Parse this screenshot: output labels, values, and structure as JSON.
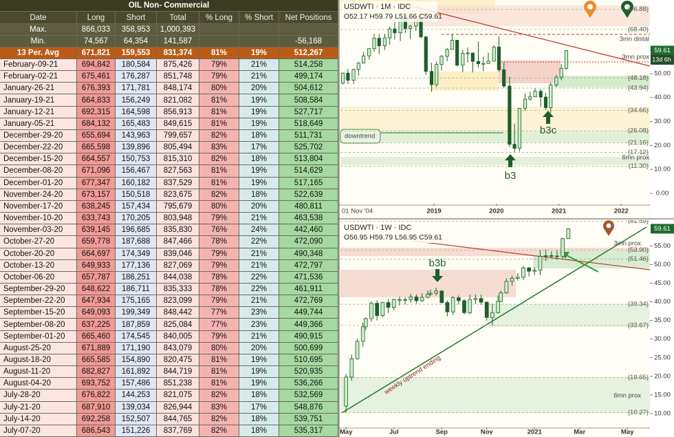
{
  "table": {
    "title": "OIL Non- Commercial",
    "columns": [
      "Date",
      "Long",
      "Short",
      "Total",
      "% Long",
      "% Short",
      "Net Positions"
    ],
    "summary": [
      {
        "label": "Max.",
        "long": "866,033",
        "short": "358,953",
        "total": "1,000,393"
      },
      {
        "label": "Min.",
        "long": "74,567",
        "short": "64,354",
        "total": "141,587",
        "net": "-56,168"
      },
      {
        "label": "13 Per. Avg",
        "long": "671,821",
        "short": "159,553",
        "total": "831,374",
        "pct_long": "81%",
        "pct_short": "19%",
        "net": "512,267"
      }
    ],
    "rows": [
      [
        "February-09-21",
        "694,842",
        "180,584",
        "875,426",
        "79%",
        "21%",
        "514,258"
      ],
      [
        "February-02-21",
        "675,461",
        "176,287",
        "851,748",
        "79%",
        "21%",
        "499,174"
      ],
      [
        "January-26-21",
        "676,393",
        "171,781",
        "848,174",
        "80%",
        "20%",
        "504,612"
      ],
      [
        "January-19-21",
        "664,833",
        "156,249",
        "821,082",
        "81%",
        "19%",
        "508,584"
      ],
      [
        "January-12-21",
        "692,315",
        "164,598",
        "856,913",
        "81%",
        "19%",
        "527,717"
      ],
      [
        "January-05-21",
        "684,132",
        "165,483",
        "849,615",
        "81%",
        "19%",
        "518,649"
      ],
      [
        "December-29-20",
        "655,694",
        "143,963",
        "799,657",
        "82%",
        "18%",
        "511,731"
      ],
      [
        "December-22-20",
        "665,598",
        "139,896",
        "805,494",
        "83%",
        "17%",
        "525,702"
      ],
      [
        "December-15-20",
        "664,557",
        "150,753",
        "815,310",
        "82%",
        "18%",
        "513,804"
      ],
      [
        "December-08-20",
        "671,096",
        "156,467",
        "827,563",
        "81%",
        "19%",
        "514,629"
      ],
      [
        "December-01-20",
        "677,347",
        "160,182",
        "837,529",
        "81%",
        "19%",
        "517,165"
      ],
      [
        "November-24-20",
        "673,157",
        "150,518",
        "823,675",
        "82%",
        "18%",
        "522,639"
      ],
      [
        "November-17-20",
        "638,245",
        "157,434",
        "795,679",
        "80%",
        "20%",
        "480,811"
      ],
      [
        "November-10-20",
        "633,743",
        "170,205",
        "803,948",
        "79%",
        "21%",
        "463,538"
      ],
      [
        "November-03-20",
        "639,145",
        "196,685",
        "835,830",
        "76%",
        "24%",
        "442,460"
      ],
      [
        "October-27-20",
        "659,778",
        "187,688",
        "847,466",
        "78%",
        "22%",
        "472,090"
      ],
      [
        "October-20-20",
        "664,697",
        "174,349",
        "839,046",
        "79%",
        "21%",
        "490,348"
      ],
      [
        "October-13-20",
        "649,933",
        "177,136",
        "827,069",
        "79%",
        "21%",
        "472,797"
      ],
      [
        "October-06-20",
        "657,787",
        "186,251",
        "844,038",
        "78%",
        "22%",
        "471,536"
      ],
      [
        "September-29-20",
        "648,622",
        "186,711",
        "835,333",
        "78%",
        "22%",
        "461,911"
      ],
      [
        "September-22-20",
        "647,934",
        "175,165",
        "823,099",
        "79%",
        "21%",
        "472,769"
      ],
      [
        "September-15-20",
        "649,093",
        "199,349",
        "848,442",
        "77%",
        "23%",
        "449,744"
      ],
      [
        "September-08-20",
        "637,225",
        "187,859",
        "825,084",
        "77%",
        "23%",
        "449,366"
      ],
      [
        "September-01-20",
        "665,460",
        "174,545",
        "840,005",
        "79%",
        "21%",
        "490,915"
      ],
      [
        "August-25-20",
        "671,889",
        "171,190",
        "843,079",
        "80%",
        "20%",
        "500,699"
      ],
      [
        "August-18-20",
        "665,585",
        "154,890",
        "820,475",
        "81%",
        "19%",
        "510,695"
      ],
      [
        "August-11-20",
        "682,827",
        "161,892",
        "844,719",
        "81%",
        "19%",
        "520,935"
      ],
      [
        "August-04-20",
        "693,752",
        "157,486",
        "851,238",
        "81%",
        "19%",
        "536,266"
      ],
      [
        "July-28-20",
        "676,822",
        "144,253",
        "821,075",
        "82%",
        "18%",
        "532,569"
      ],
      [
        "July-21-20",
        "687,910",
        "139,034",
        "826,944",
        "83%",
        "17%",
        "548,876"
      ],
      [
        "July-14-20",
        "692,258",
        "152,507",
        "844,765",
        "82%",
        "18%",
        "539,751"
      ],
      [
        "July-07-20",
        "686,543",
        "151,226",
        "837,769",
        "82%",
        "18%",
        "535,317"
      ]
    ]
  },
  "chart_data": [
    {
      "type": "candlestick",
      "title": "USDWTI · 1M · IDC",
      "ohlc_label": "O52.17 H59.79 L51.66 C59.61",
      "x": [
        2017.54,
        2017.62,
        2017.71,
        2017.79,
        2017.87,
        2017.96,
        2018.04,
        2018.12,
        2018.21,
        2018.29,
        2018.37,
        2018.46,
        2018.54,
        2018.62,
        2018.71,
        2018.79,
        2018.87,
        2018.96,
        2019.04,
        2019.12,
        2019.21,
        2019.29,
        2019.37,
        2019.46,
        2019.54,
        2019.62,
        2019.71,
        2019.79,
        2019.87,
        2019.96,
        2020.04,
        2020.12,
        2020.21,
        2020.29,
        2020.37,
        2020.46,
        2020.54,
        2020.62,
        2020.71,
        2020.79,
        2020.87,
        2020.96,
        2021.04,
        2021.12
      ],
      "open": [
        46.0,
        50.2,
        47.2,
        51.7,
        54.4,
        57.4,
        60.4,
        64.7,
        61.6,
        64.9,
        68.6,
        67.0,
        74.1,
        68.8,
        69.8,
        73.2,
        65.3,
        50.9,
        45.4,
        53.8,
        57.2,
        60.1,
        63.9,
        53.5,
        58.5,
        58.6,
        55.1,
        54.1,
        54.2,
        55.2,
        61.1,
        51.6,
        44.8,
        20.5,
        18.8,
        35.5,
        39.3,
        40.3,
        42.6,
        40.2,
        35.8,
        45.3,
        48.5,
        52.17
      ],
      "high": [
        50.4,
        52.0,
        52.0,
        54.8,
        59.0,
        60.5,
        66.6,
        66.7,
        66.6,
        69.6,
        72.9,
        74.4,
        75.3,
        70.4,
        73.8,
        76.9,
        65.7,
        54.5,
        55.0,
        57.8,
        60.7,
        66.6,
        64.1,
        59.9,
        60.9,
        58.7,
        63.4,
        57.0,
        58.7,
        61.8,
        65.6,
        54.6,
        48.7,
        29.1,
        35.6,
        41.6,
        42.5,
        43.8,
        43.5,
        41.9,
        46.3,
        49.4,
        53.9,
        59.79
      ],
      "low": [
        45.4,
        45.6,
        45.6,
        49.1,
        54.2,
        55.8,
        59.1,
        58.1,
        59.9,
        62.0,
        64.2,
        63.6,
        67.0,
        64.4,
        67.8,
        64.8,
        49.4,
        42.4,
        44.4,
        51.2,
        55.2,
        60.0,
        53.0,
        50.6,
        54.7,
        50.5,
        52.6,
        50.9,
        54.1,
        55.1,
        50.6,
        44.0,
        19.3,
        17.1,
        17.5,
        34.4,
        38.7,
        40.2,
        36.1,
        34.9,
        33.6,
        44.4,
        47.2,
        51.66
      ],
      "close": [
        50.2,
        47.2,
        51.7,
        54.4,
        57.4,
        60.4,
        64.7,
        61.6,
        64.9,
        68.6,
        67.0,
        74.1,
        68.8,
        69.8,
        73.2,
        65.3,
        50.9,
        45.4,
        53.8,
        57.2,
        60.1,
        63.9,
        53.5,
        58.5,
        58.6,
        55.1,
        54.1,
        54.2,
        55.2,
        61.1,
        51.6,
        44.8,
        20.5,
        18.8,
        35.5,
        39.3,
        40.3,
        42.6,
        40.2,
        35.8,
        45.3,
        48.5,
        52.17,
        59.61
      ],
      "xlim": [
        2017.5,
        2022.46
      ],
      "ylim": [
        -4.3,
        80.7
      ],
      "xticks": [
        2019,
        2020,
        2021,
        2022
      ],
      "yticks": [
        {
          "value": 0,
          "label": "0.00"
        },
        {
          "value": 10,
          "label": "10.00"
        },
        {
          "value": 20,
          "label": "20.00"
        },
        {
          "value": 30,
          "label": "30.00"
        },
        {
          "value": 40,
          "label": "40.00"
        },
        {
          "value": 50,
          "label": "50.00"
        },
        {
          "value": 60,
          "label": "60.00"
        }
      ],
      "levels": [
        {
          "value": 76.88,
          "label": "(76.88)"
        },
        {
          "value": 68.4,
          "label": "(68.40)"
        },
        {
          "value": 48.18,
          "label": "(48.18)"
        },
        {
          "value": 43.94,
          "label": "(43.94)"
        },
        {
          "value": 34.66,
          "label": "(34.66)"
        },
        {
          "value": 26.08,
          "label": "(26.08)"
        },
        {
          "value": 21.16,
          "label": "(21.16)"
        },
        {
          "value": 17.12,
          "label": "(17.12)"
        },
        {
          "value": 11.3,
          "label": "(11.30)"
        }
      ],
      "annotations": [
        "3mn distal",
        "3mn prox",
        "6mn prox",
        "downtrend",
        "b3",
        "b3c",
        "01 Nov '04",
        "13d 6h"
      ],
      "up_color": "#c9ecc7",
      "down_color": "#1d5e2a",
      "edge_color": "#1d5e2a"
    },
    {
      "type": "candlestick",
      "title": "USDWTI · 1W · IDC",
      "ohlc_label": "O56.95 H59.79 L56.95 C59.61",
      "x": [
        2020.33,
        2020.35,
        2020.37,
        2020.39,
        2020.4,
        2020.42,
        2020.44,
        2020.46,
        2020.48,
        2020.5,
        2020.52,
        2020.54,
        2020.56,
        2020.58,
        2020.6,
        2020.62,
        2020.63,
        2020.65,
        2020.67,
        2020.69,
        2020.71,
        2020.73,
        2020.75,
        2020.77,
        2020.79,
        2020.81,
        2020.83,
        2020.85,
        2020.87,
        2020.88,
        2020.9,
        2020.92,
        2020.94,
        2020.96,
        2020.98,
        2021.0,
        2021.02,
        2021.04,
        2021.06,
        2021.08,
        2021.1,
        2021.12
      ],
      "open": [
        12.0,
        19.8,
        24.7,
        29.4,
        33.3,
        35.5,
        39.6,
        36.3,
        39.8,
        38.5,
        40.6,
        40.6,
        40.6,
        41.3,
        40.3,
        41.2,
        42.0,
        42.3,
        42.9,
        39.8,
        37.3,
        41.1,
        40.3,
        37.1,
        40.6,
        40.9,
        39.9,
        35.8,
        37.1,
        40.1,
        42.4,
        45.5,
        46.3,
        46.6,
        49.1,
        48.2,
        48.5,
        52.2,
        52.4,
        52.3,
        52.2,
        56.95
      ],
      "high": [
        20.6,
        25.8,
        30.1,
        34.4,
        35.8,
        40.1,
        40.4,
        40.0,
        40.7,
        40.9,
        41.4,
        41.2,
        42.1,
        42.0,
        42.3,
        43.0,
        43.3,
        43.8,
        43.1,
        40.4,
        41.5,
        41.7,
        40.8,
        41.9,
        41.9,
        41.9,
        40.1,
        39.5,
        41.7,
        43.0,
        46.3,
        47.0,
        47.7,
        49.6,
        49.4,
        49.3,
        53.9,
        54.0,
        53.5,
        53.9,
        57.2,
        59.79
      ],
      "low": [
        10.3,
        18.8,
        24.5,
        28.0,
        32.4,
        34.7,
        35.0,
        35.9,
        37.0,
        37.7,
        39.1,
        39.3,
        39.8,
        39.6,
        39.9,
        40.9,
        41.5,
        41.7,
        39.5,
        36.1,
        36.4,
        39.3,
        36.6,
        36.6,
        39.4,
        39.2,
        34.9,
        33.6,
        36.8,
        39.9,
        42.2,
        44.3,
        45.7,
        45.8,
        46.8,
        47.2,
        47.2,
        51.0,
        51.9,
        51.3,
        51.4,
        56.95
      ],
      "close": [
        19.8,
        24.7,
        29.4,
        33.3,
        35.5,
        39.6,
        36.3,
        39.8,
        38.5,
        40.6,
        40.6,
        40.6,
        41.3,
        40.3,
        41.2,
        42.0,
        42.3,
        42.9,
        39.8,
        37.3,
        41.1,
        40.3,
        37.1,
        40.6,
        40.9,
        39.9,
        35.8,
        37.1,
        40.1,
        42.4,
        45.5,
        46.3,
        46.6,
        49.1,
        48.2,
        48.5,
        52.2,
        52.4,
        52.3,
        52.2,
        56.95,
        59.61
      ],
      "xlim": [
        2020.31,
        2021.41
      ],
      "ylim": [
        6.3,
        61.9
      ],
      "xticks": [
        {
          "value": 2020.33,
          "label": "May"
        },
        {
          "value": 2020.5,
          "label": "Jul"
        },
        {
          "value": 2020.67,
          "label": "Sep"
        },
        {
          "value": 2020.83,
          "label": "Nov"
        },
        2021,
        {
          "value": 2021.16,
          "label": "Mar"
        },
        {
          "value": 2021.33,
          "label": "May"
        }
      ],
      "yticks": [
        {
          "value": 10,
          "label": "10.00"
        },
        {
          "value": 15,
          "label": "15.00"
        },
        {
          "value": 20,
          "label": "20.00"
        },
        {
          "value": 25,
          "label": "25.00"
        },
        {
          "value": 30,
          "label": "30.00"
        },
        {
          "value": 35,
          "label": "35.00"
        },
        {
          "value": 40,
          "label": "40.00"
        },
        {
          "value": 45,
          "label": "45.00"
        },
        {
          "value": 50,
          "label": "50.00"
        },
        {
          "value": 55,
          "label": "55.00"
        }
      ],
      "levels": [
        {
          "value": 61.59,
          "label": "(61.59)"
        },
        {
          "value": 53.9,
          "label": "(53.90)"
        },
        {
          "value": 51.46,
          "label": "(51.46)"
        },
        {
          "value": 39.34,
          "label": "(39.34)"
        },
        {
          "value": 33.67,
          "label": "(33.67)"
        },
        {
          "value": 19.65,
          "label": "(19.65)"
        },
        {
          "value": 10.27,
          "label": "(10.27)"
        }
      ],
      "annotations": [
        "3mn prox",
        "6mn prox",
        "b3b",
        "weekly uptrend ending"
      ],
      "up_color": "#c9ecc7",
      "down_color": "#1d5e2a",
      "edge_color": "#1d5e2a"
    }
  ]
}
